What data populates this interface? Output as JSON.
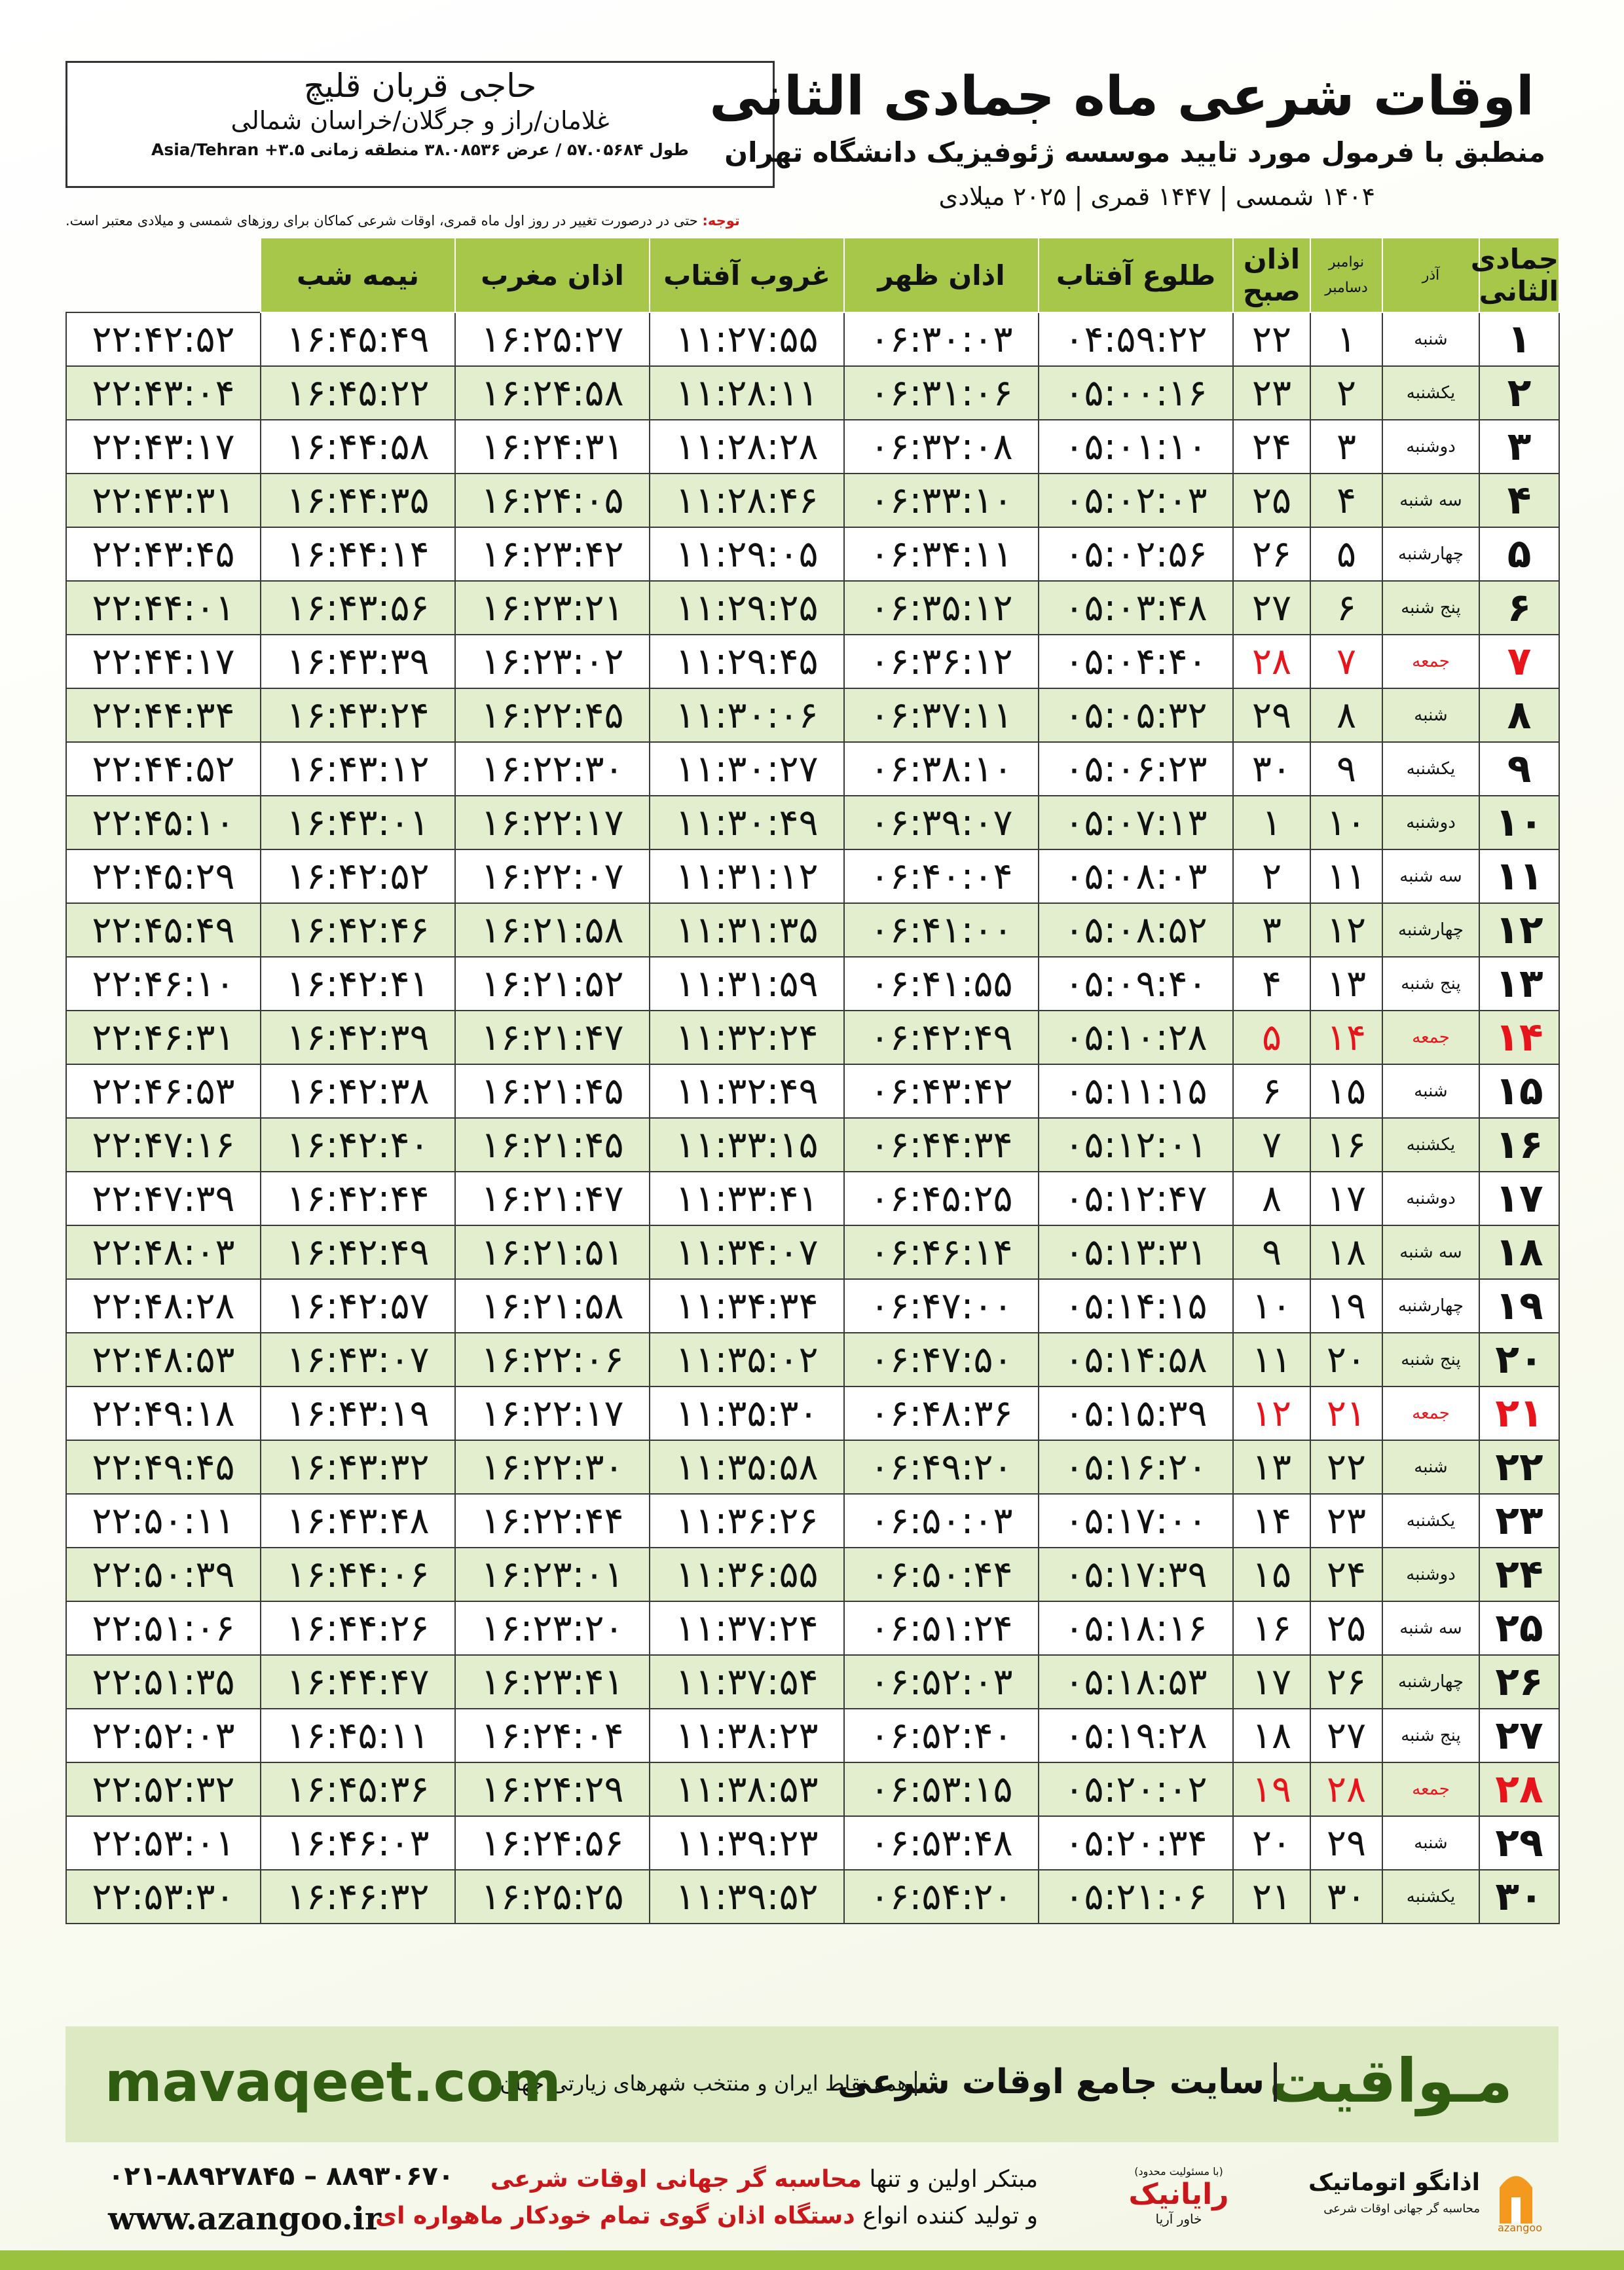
{
  "header": {
    "title": "اوقات شرعی ماه جمادی الثانی",
    "subtitle": "منطبق با فرمول مورد تایید موسسه ژئوفیزیک دانشگاه تهران",
    "dates": "۱۴۰۴ شمسی | ۱۴۴۷ قمری | ۲۰۲۵ میلادی"
  },
  "location": {
    "name": "حاجی قربان قلیچ",
    "place": "غلامان/راز و جرگلان/خراسان شمالی",
    "coords": "طول ۵۷.۰۵۶۸۴ / عرض ۳۸.۰۸۵۳۶ منطقه زمانی ۳.۵+ Asia/Tehran"
  },
  "note": {
    "label": "توجه:",
    "text": "حتی در درصورت تغییر در روز اول ماه قمری، اوقات شرعی کماکان برای روزهای شمسی و میلادی معتبر است."
  },
  "table": {
    "header": {
      "hijri": "جمادی الثانی",
      "shamsi": "آذر",
      "greg_top": "نوامبر",
      "greg_bottom": "دسامبر",
      "times": [
        "اذان صبح",
        "طلوع آفتاب",
        "اذان ظهر",
        "غروب آفتاب",
        "اذان مغرب",
        "نیمه شب"
      ]
    },
    "holiday_color": "#e8141b",
    "rows": [
      {
        "cells": [
          "۱",
          "شنبه",
          "۱",
          "۲۲",
          "۰۴:۵۹:۲۲",
          "۰۶:۳۰:۰۳",
          "۱۱:۲۷:۵۵",
          "۱۶:۲۵:۲۷",
          "۱۶:۴۵:۴۹",
          "۲۲:۴۲:۵۲"
        ]
      },
      {
        "cells": [
          "۲",
          "یکشنبه",
          "۲",
          "۲۳",
          "۰۵:۰۰:۱۶",
          "۰۶:۳۱:۰۶",
          "۱۱:۲۸:۱۱",
          "۱۶:۲۴:۵۸",
          "۱۶:۴۵:۲۲",
          "۲۲:۴۳:۰۴"
        ]
      },
      {
        "cells": [
          "۳",
          "دوشنبه",
          "۳",
          "۲۴",
          "۰۵:۰۱:۱۰",
          "۰۶:۳۲:۰۸",
          "۱۱:۲۸:۲۸",
          "۱۶:۲۴:۳۱",
          "۱۶:۴۴:۵۸",
          "۲۲:۴۳:۱۷"
        ]
      },
      {
        "cells": [
          "۴",
          "سه شنبه",
          "۴",
          "۲۵",
          "۰۵:۰۲:۰۳",
          "۰۶:۳۳:۱۰",
          "۱۱:۲۸:۴۶",
          "۱۶:۲۴:۰۵",
          "۱۶:۴۴:۳۵",
          "۲۲:۴۳:۳۱"
        ]
      },
      {
        "cells": [
          "۵",
          "چهارشنبه",
          "۵",
          "۲۶",
          "۰۵:۰۲:۵۶",
          "۰۶:۳۴:۱۱",
          "۱۱:۲۹:۰۵",
          "۱۶:۲۳:۴۲",
          "۱۶:۴۴:۱۴",
          "۲۲:۴۳:۴۵"
        ]
      },
      {
        "cells": [
          "۶",
          "پنج شنبه",
          "۶",
          "۲۷",
          "۰۵:۰۳:۴۸",
          "۰۶:۳۵:۱۲",
          "۱۱:۲۹:۲۵",
          "۱۶:۲۳:۲۱",
          "۱۶:۴۳:۵۶",
          "۲۲:۴۴:۰۱"
        ]
      },
      {
        "cells": [
          "۷",
          "جمعه",
          "۷",
          "۲۸",
          "۰۵:۰۴:۴۰",
          "۰۶:۳۶:۱۲",
          "۱۱:۲۹:۴۵",
          "۱۶:۲۳:۰۲",
          "۱۶:۴۳:۳۹",
          "۲۲:۴۴:۱۷"
        ],
        "holiday": true
      },
      {
        "cells": [
          "۸",
          "شنبه",
          "۸",
          "۲۹",
          "۰۵:۰۵:۳۲",
          "۰۶:۳۷:۱۱",
          "۱۱:۳۰:۰۶",
          "۱۶:۲۲:۴۵",
          "۱۶:۴۳:۲۴",
          "۲۲:۴۴:۳۴"
        ]
      },
      {
        "cells": [
          "۹",
          "یکشنبه",
          "۹",
          "۳۰",
          "۰۵:۰۶:۲۳",
          "۰۶:۳۸:۱۰",
          "۱۱:۳۰:۲۷",
          "۱۶:۲۲:۳۰",
          "۱۶:۴۳:۱۲",
          "۲۲:۴۴:۵۲"
        ]
      },
      {
        "cells": [
          "۱۰",
          "دوشنبه",
          "۱۰",
          "۱",
          "۰۵:۰۷:۱۳",
          "۰۶:۳۹:۰۷",
          "۱۱:۳۰:۴۹",
          "۱۶:۲۲:۱۷",
          "۱۶:۴۳:۰۱",
          "۲۲:۴۵:۱۰"
        ]
      },
      {
        "cells": [
          "۱۱",
          "سه شنبه",
          "۱۱",
          "۲",
          "۰۵:۰۸:۰۳",
          "۰۶:۴۰:۰۴",
          "۱۱:۳۱:۱۲",
          "۱۶:۲۲:۰۷",
          "۱۶:۴۲:۵۲",
          "۲۲:۴۵:۲۹"
        ]
      },
      {
        "cells": [
          "۱۲",
          "چهارشنبه",
          "۱۲",
          "۳",
          "۰۵:۰۸:۵۲",
          "۰۶:۴۱:۰۰",
          "۱۱:۳۱:۳۵",
          "۱۶:۲۱:۵۸",
          "۱۶:۴۲:۴۶",
          "۲۲:۴۵:۴۹"
        ]
      },
      {
        "cells": [
          "۱۳",
          "پنج شنبه",
          "۱۳",
          "۴",
          "۰۵:۰۹:۴۰",
          "۰۶:۴۱:۵۵",
          "۱۱:۳۱:۵۹",
          "۱۶:۲۱:۵۲",
          "۱۶:۴۲:۴۱",
          "۲۲:۴۶:۱۰"
        ]
      },
      {
        "cells": [
          "۱۴",
          "جمعه",
          "۱۴",
          "۵",
          "۰۵:۱۰:۲۸",
          "۰۶:۴۲:۴۹",
          "۱۱:۳۲:۲۴",
          "۱۶:۲۱:۴۷",
          "۱۶:۴۲:۳۹",
          "۲۲:۴۶:۳۱"
        ],
        "holiday": true
      },
      {
        "cells": [
          "۱۵",
          "شنبه",
          "۱۵",
          "۶",
          "۰۵:۱۱:۱۵",
          "۰۶:۴۳:۴۲",
          "۱۱:۳۲:۴۹",
          "۱۶:۲۱:۴۵",
          "۱۶:۴۲:۳۸",
          "۲۲:۴۶:۵۳"
        ]
      },
      {
        "cells": [
          "۱۶",
          "یکشنبه",
          "۱۶",
          "۷",
          "۰۵:۱۲:۰۱",
          "۰۶:۴۴:۳۴",
          "۱۱:۳۳:۱۵",
          "۱۶:۲۱:۴۵",
          "۱۶:۴۲:۴۰",
          "۲۲:۴۷:۱۶"
        ]
      },
      {
        "cells": [
          "۱۷",
          "دوشنبه",
          "۱۷",
          "۸",
          "۰۵:۱۲:۴۷",
          "۰۶:۴۵:۲۵",
          "۱۱:۳۳:۴۱",
          "۱۶:۲۱:۴۷",
          "۱۶:۴۲:۴۴",
          "۲۲:۴۷:۳۹"
        ]
      },
      {
        "cells": [
          "۱۸",
          "سه شنبه",
          "۱۸",
          "۹",
          "۰۵:۱۳:۳۱",
          "۰۶:۴۶:۱۴",
          "۱۱:۳۴:۰۷",
          "۱۶:۲۱:۵۱",
          "۱۶:۴۲:۴۹",
          "۲۲:۴۸:۰۳"
        ]
      },
      {
        "cells": [
          "۱۹",
          "چهارشنبه",
          "۱۹",
          "۱۰",
          "۰۵:۱۴:۱۵",
          "۰۶:۴۷:۰۰",
          "۱۱:۳۴:۳۴",
          "۱۶:۲۱:۵۸",
          "۱۶:۴۲:۵۷",
          "۲۲:۴۸:۲۸"
        ]
      },
      {
        "cells": [
          "۲۰",
          "پنج شنبه",
          "۲۰",
          "۱۱",
          "۰۵:۱۴:۵۸",
          "۰۶:۴۷:۵۰",
          "۱۱:۳۵:۰۲",
          "۱۶:۲۲:۰۶",
          "۱۶:۴۳:۰۷",
          "۲۲:۴۸:۵۳"
        ]
      },
      {
        "cells": [
          "۲۱",
          "جمعه",
          "۲۱",
          "۱۲",
          "۰۵:۱۵:۳۹",
          "۰۶:۴۸:۳۶",
          "۱۱:۳۵:۳۰",
          "۱۶:۲۲:۱۷",
          "۱۶:۴۳:۱۹",
          "۲۲:۴۹:۱۸"
        ],
        "holiday": true
      },
      {
        "cells": [
          "۲۲",
          "شنبه",
          "۲۲",
          "۱۳",
          "۰۵:۱۶:۲۰",
          "۰۶:۴۹:۲۰",
          "۱۱:۳۵:۵۸",
          "۱۶:۲۲:۳۰",
          "۱۶:۴۳:۳۲",
          "۲۲:۴۹:۴۵"
        ]
      },
      {
        "cells": [
          "۲۳",
          "یکشنبه",
          "۲۳",
          "۱۴",
          "۰۵:۱۷:۰۰",
          "۰۶:۵۰:۰۳",
          "۱۱:۳۶:۲۶",
          "۱۶:۲۲:۴۴",
          "۱۶:۴۳:۴۸",
          "۲۲:۵۰:۱۱"
        ]
      },
      {
        "cells": [
          "۲۴",
          "دوشنبه",
          "۲۴",
          "۱۵",
          "۰۵:۱۷:۳۹",
          "۰۶:۵۰:۴۴",
          "۱۱:۳۶:۵۵",
          "۱۶:۲۳:۰۱",
          "۱۶:۴۴:۰۶",
          "۲۲:۵۰:۳۹"
        ]
      },
      {
        "cells": [
          "۲۵",
          "سه شنبه",
          "۲۵",
          "۱۶",
          "۰۵:۱۸:۱۶",
          "۰۶:۵۱:۲۴",
          "۱۱:۳۷:۲۴",
          "۱۶:۲۳:۲۰",
          "۱۶:۴۴:۲۶",
          "۲۲:۵۱:۰۶"
        ]
      },
      {
        "cells": [
          "۲۶",
          "چهارشنبه",
          "۲۶",
          "۱۷",
          "۰۵:۱۸:۵۳",
          "۰۶:۵۲:۰۳",
          "۱۱:۳۷:۵۴",
          "۱۶:۲۳:۴۱",
          "۱۶:۴۴:۴۷",
          "۲۲:۵۱:۳۵"
        ]
      },
      {
        "cells": [
          "۲۷",
          "پنج شنبه",
          "۲۷",
          "۱۸",
          "۰۵:۱۹:۲۸",
          "۰۶:۵۲:۴۰",
          "۱۱:۳۸:۲۳",
          "۱۶:۲۴:۰۴",
          "۱۶:۴۵:۱۱",
          "۲۲:۵۲:۰۳"
        ]
      },
      {
        "cells": [
          "۲۸",
          "جمعه",
          "۲۸",
          "۱۹",
          "۰۵:۲۰:۰۲",
          "۰۶:۵۳:۱۵",
          "۱۱:۳۸:۵۳",
          "۱۶:۲۴:۲۹",
          "۱۶:۴۵:۳۶",
          "۲۲:۵۲:۳۲"
        ],
        "holiday": true
      },
      {
        "cells": [
          "۲۹",
          "شنبه",
          "۲۹",
          "۲۰",
          "۰۵:۲۰:۳۴",
          "۰۶:۵۳:۴۸",
          "۱۱:۳۹:۲۳",
          "۱۶:۲۴:۵۶",
          "۱۶:۴۶:۰۳",
          "۲۲:۵۳:۰۱"
        ]
      },
      {
        "cells": [
          "۳۰",
          "یکشنبه",
          "۳۰",
          "۲۱",
          "۰۵:۲۱:۰۶",
          "۰۶:۵۴:۲۰",
          "۱۱:۳۹:۵۲",
          "۱۶:۲۵:۲۵",
          "۱۶:۴۶:۳۲",
          "۲۲:۵۳:۳۰"
        ]
      }
    ]
  },
  "banner": {
    "brand": "مـواقیت",
    "site_title": "سایت جامع اوقات شرعی",
    "site_desc": "همه نقاط ایران و منتخب شهرهای زیارتی جهان",
    "url": "mavaqeet.com"
  },
  "footer": {
    "phones": "۰۲۱-۸۸۹۲۷۸۴۵ – ۸۸۹۳۰۶۷۰",
    "web": "www.azangoo.ir",
    "line1_a": "مبتکر اولین و تنها",
    "line1_b": "محاسبه گر جهانی اوقات شرعی",
    "line2_a": "و تولید کننده انواع",
    "line2_b": "دستگاه اذان گوی تمام خودکار ماهواره ای",
    "rayanik_note": "(با مسئولیت محدود)",
    "rayanik": "رایانیک",
    "rayanik_sub": "خاور آریا",
    "azangoo": "اذانگو اتوماتیک",
    "azangoo_sub": "محاسبه گر جهانی اوقات شرعی",
    "azangoo_latin": "azangoo"
  }
}
